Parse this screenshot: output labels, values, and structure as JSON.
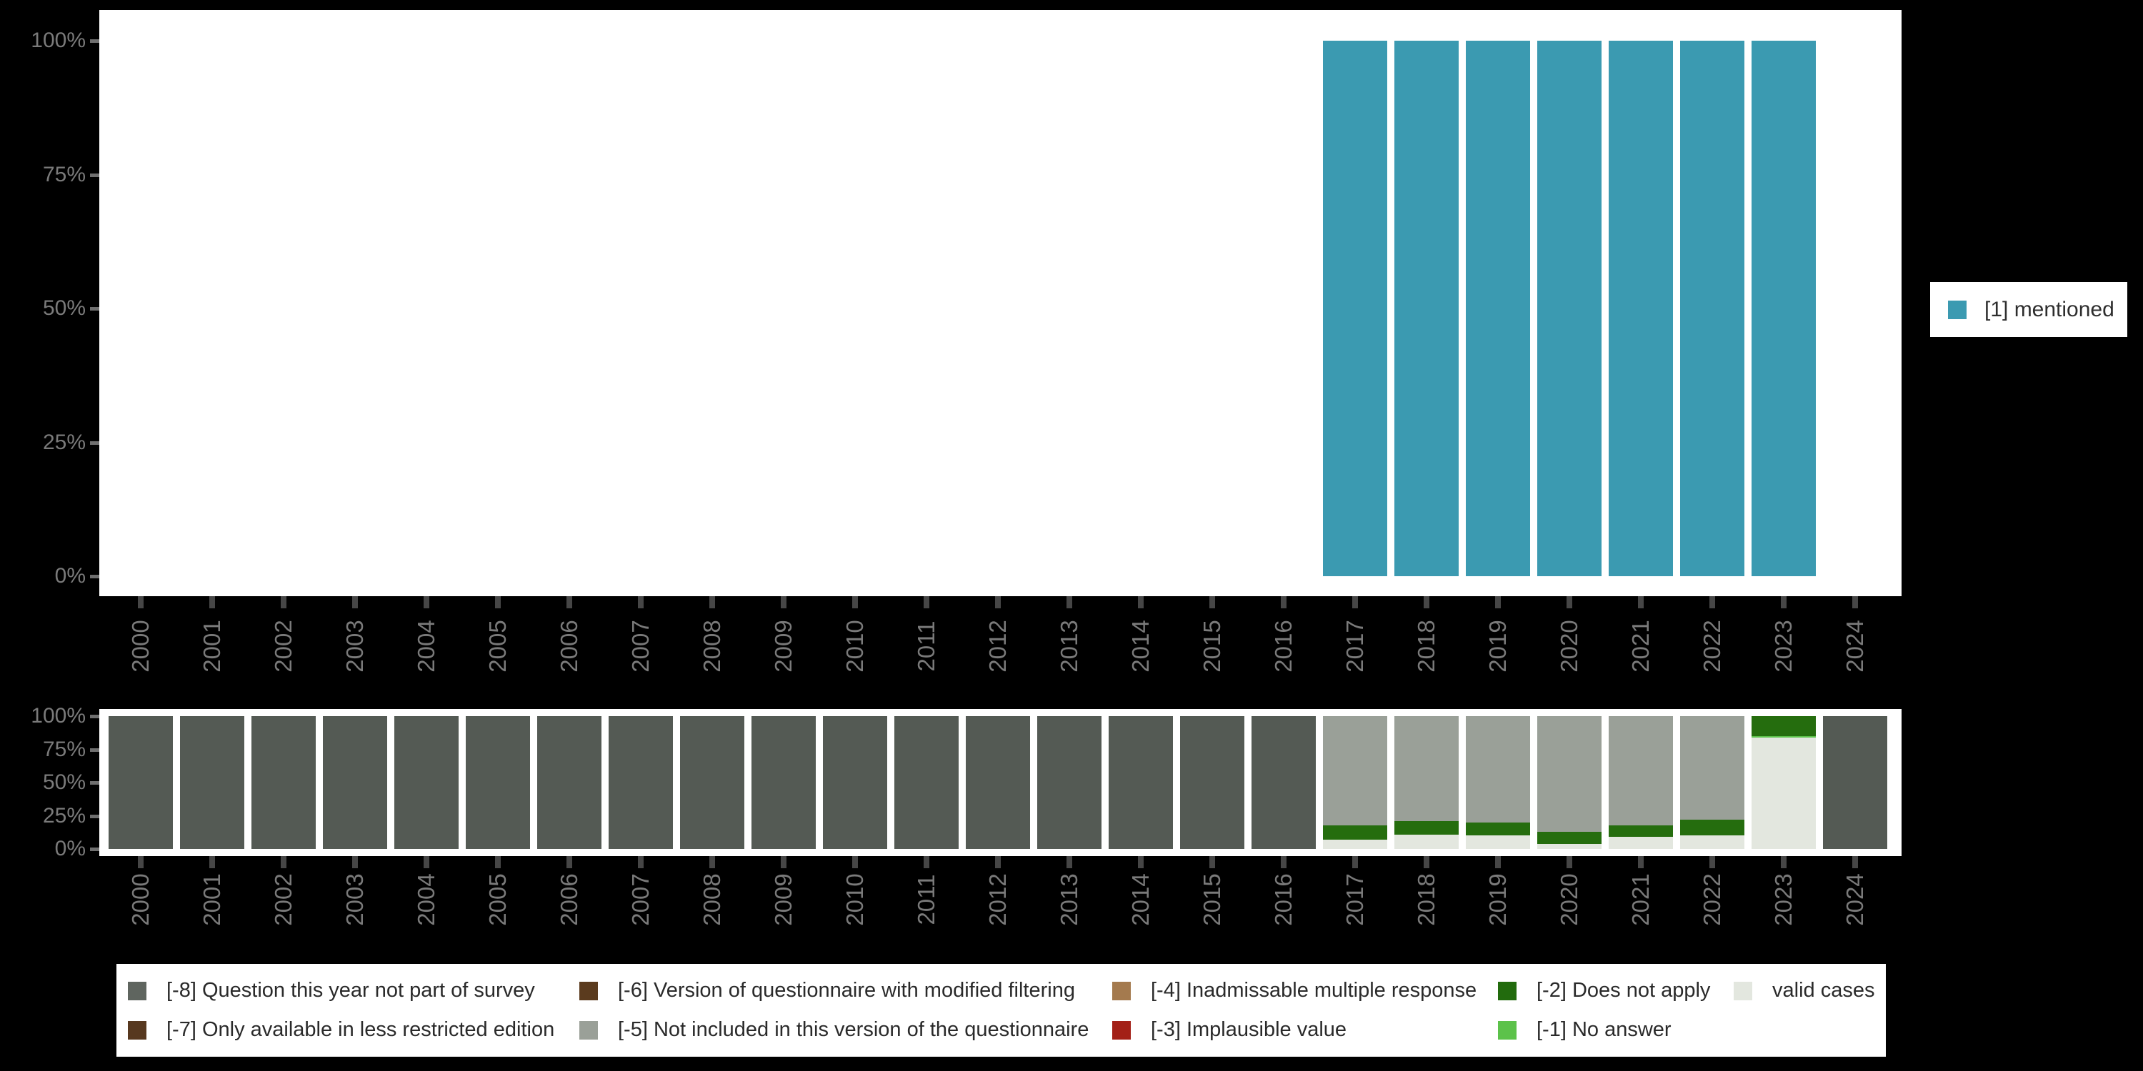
{
  "colors": {
    "background": "#000000",
    "panel": "#ffffff",
    "axis_label": "#7a7a7a",
    "x_tick": "#464646",
    "y_tick": "#6f6f6f",
    "legend_text": "#2a2a2a"
  },
  "top_legend": {
    "items": [
      {
        "label": "[1] mentioned",
        "color": "#3b9ab1"
      }
    ]
  },
  "missing_legend": {
    "items": [
      {
        "label": "[-8] Question this year not part of survey",
        "color": "#5f655f"
      },
      {
        "label": "[-6] Version of questionnaire with modified filtering",
        "color": "#5b3b1e"
      },
      {
        "label": "[-4] Inadmissable multiple response",
        "color": "#a47a4e"
      },
      {
        "label": "[-2] Does not apply",
        "color": "#226b0d"
      },
      {
        "label": "valid cases",
        "color": "#e3e7df"
      },
      {
        "label": "[-7] Only available in less restricted edition",
        "color": "#57381f"
      },
      {
        "label": "[-5] Not included in this version of the questionnaire",
        "color": "#9aa098"
      },
      {
        "label": "[-3] Implausible value",
        "color": "#a32017"
      },
      {
        "label": "[-1] No answer",
        "color": "#5cc24a"
      }
    ]
  },
  "chart_data": [
    {
      "type": "bar",
      "id": "values-chart",
      "title": "",
      "xlabel": "",
      "ylabel": "",
      "stacked": true,
      "grid": false,
      "ylim": [
        0,
        100
      ],
      "y_ticks": [
        "100%",
        "75%",
        "50%",
        "25%",
        "0%"
      ],
      "categories": [
        "2000",
        "2001",
        "2002",
        "2003",
        "2004",
        "2005",
        "2006",
        "2007",
        "2008",
        "2009",
        "2010",
        "2011",
        "2012",
        "2013",
        "2014",
        "2015",
        "2016",
        "2017",
        "2018",
        "2019",
        "2020",
        "2021",
        "2022",
        "2023",
        "2024"
      ],
      "series": [
        {
          "name": "[1] mentioned",
          "color": "#3b9ab1",
          "values": [
            0,
            0,
            0,
            0,
            0,
            0,
            0,
            0,
            0,
            0,
            0,
            0,
            0,
            0,
            0,
            0,
            0,
            100,
            100,
            100,
            100,
            100,
            100,
            100,
            0
          ]
        }
      ],
      "legend_position": "right"
    },
    {
      "type": "bar",
      "id": "missings-chart",
      "title": "",
      "xlabel": "",
      "ylabel": "",
      "stacked": true,
      "grid": false,
      "ylim": [
        0,
        100
      ],
      "y_ticks": [
        "100%",
        "75%",
        "50%",
        "25%",
        "0%"
      ],
      "categories": [
        "2000",
        "2001",
        "2002",
        "2003",
        "2004",
        "2005",
        "2006",
        "2007",
        "2008",
        "2009",
        "2010",
        "2011",
        "2012",
        "2013",
        "2014",
        "2015",
        "2016",
        "2017",
        "2018",
        "2019",
        "2020",
        "2021",
        "2022",
        "2023",
        "2024"
      ],
      "series": [
        {
          "name": "valid cases",
          "color": "#e3e7df",
          "values": [
            0,
            0,
            0,
            0,
            0,
            0,
            0,
            0,
            0,
            0,
            0,
            0,
            0,
            0,
            0,
            0,
            0,
            7,
            11,
            10,
            4,
            9,
            10,
            84,
            0
          ]
        },
        {
          "name": "[-1] No answer",
          "color": "#5cc24a",
          "values": [
            0,
            0,
            0,
            0,
            0,
            0,
            0,
            0,
            0,
            0,
            0,
            0,
            0,
            0,
            0,
            0,
            0,
            0,
            0,
            0,
            0,
            0,
            0,
            1,
            0
          ]
        },
        {
          "name": "[-2] Does not apply",
          "color": "#256d0e",
          "values": [
            0,
            0,
            0,
            0,
            0,
            0,
            0,
            0,
            0,
            0,
            0,
            0,
            0,
            0,
            0,
            0,
            0,
            11,
            10,
            10,
            9,
            9,
            12,
            15,
            0
          ]
        },
        {
          "name": "[-5] Not included in this version of the questionnaire",
          "color": "#9aa098",
          "values": [
            0,
            0,
            0,
            0,
            0,
            0,
            0,
            0,
            0,
            0,
            0,
            0,
            0,
            0,
            0,
            0,
            0,
            82,
            79,
            80,
            87,
            82,
            78,
            0,
            0
          ]
        },
        {
          "name": "[-8] Question this year not part of survey",
          "color": "#545a54",
          "values": [
            100,
            100,
            100,
            100,
            100,
            100,
            100,
            100,
            100,
            100,
            100,
            100,
            100,
            100,
            100,
            100,
            100,
            0,
            0,
            0,
            0,
            0,
            0,
            0,
            100
          ]
        }
      ],
      "legend_position": "bottom"
    }
  ]
}
